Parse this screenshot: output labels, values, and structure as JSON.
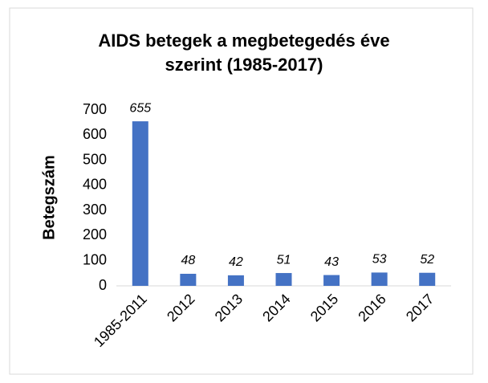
{
  "chart_data": {
    "type": "bar",
    "title": "AIDS betegek a megbetegedés éve szerint (1985-2017)",
    "y_label": "Betegszám",
    "categories": [
      "1985-2011",
      "2012",
      "2013",
      "2014",
      "2015",
      "2016",
      "2017"
    ],
    "values": [
      655,
      48,
      42,
      51,
      43,
      53,
      52
    ],
    "color": "#4472c4",
    "ylim": [
      0,
      700
    ],
    "yticks": [
      0,
      100,
      200,
      300,
      400,
      500,
      600,
      700
    ],
    "grid": false
  }
}
